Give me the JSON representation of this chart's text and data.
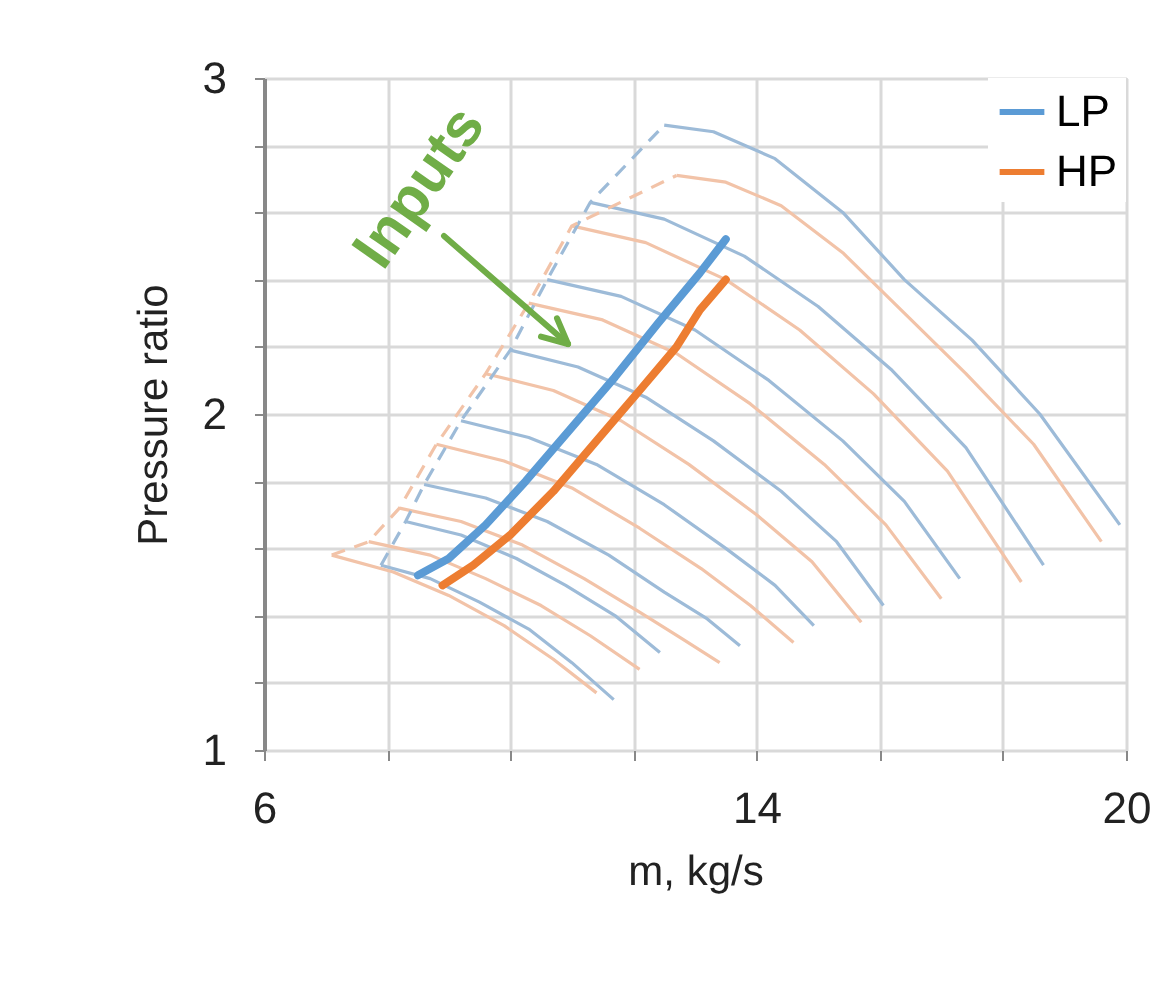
{
  "chart_data": {
    "type": "line",
    "xlabel": "m, kg/s",
    "ylabel": "Pressure ratio",
    "xlim": [
      6,
      20
    ],
    "ylim": [
      1,
      3
    ],
    "xticks": [
      6,
      {
        "value": 8,
        "label": null
      },
      {
        "value": 10,
        "label": null
      },
      {
        "value": 12,
        "label": null
      },
      14,
      {
        "value": 16,
        "label": null
      },
      {
        "value": 18,
        "label": null
      },
      20
    ],
    "yticks": [
      1,
      {
        "value": 1.2,
        "label": null
      },
      {
        "value": 1.4,
        "label": null
      },
      {
        "value": 1.6,
        "label": null
      },
      {
        "value": 1.8,
        "label": null
      },
      2,
      {
        "value": 2.2,
        "label": null
      },
      {
        "value": 2.4,
        "label": null
      },
      {
        "value": 2.6,
        "label": null
      },
      {
        "value": 2.8,
        "label": null
      },
      3
    ],
    "grid": true,
    "legend": "top right",
    "line_style": "solid",
    "marker": "none",
    "annotations": [
      "Inputs"
    ],
    "series": [
      {
        "color": "#9dbbd8",
        "x": [
          12.5,
          13.3,
          14.3,
          15.4,
          16.4,
          17.5,
          18.6,
          19.9
        ],
        "values": [
          2.86,
          2.84,
          2.76,
          2.6,
          2.4,
          2.22,
          2.0,
          1.67
        ]
      },
      {
        "color": "#9dbbd8",
        "x": [
          11.3,
          12.5,
          13.8,
          15.0,
          16.2,
          17.4,
          18.66
        ],
        "values": [
          2.63,
          2.58,
          2.47,
          2.32,
          2.13,
          1.9,
          1.55
        ]
      },
      {
        "color": "#9dbbd8",
        "x": [
          10.6,
          11.8,
          13.0,
          14.2,
          15.4,
          16.4,
          17.3
        ],
        "values": [
          2.4,
          2.35,
          2.25,
          2.1,
          1.92,
          1.74,
          1.51
        ]
      },
      {
        "color": "#9dbbd8",
        "x": [
          10.0,
          11.1,
          12.2,
          13.3,
          14.4,
          15.3,
          16.06
        ],
        "values": [
          2.19,
          2.14,
          2.05,
          1.92,
          1.77,
          1.62,
          1.43
        ]
      },
      {
        "color": "#9dbbd8",
        "x": [
          9.2,
          10.3,
          11.4,
          12.5,
          13.5,
          14.3,
          14.93
        ],
        "values": [
          1.98,
          1.93,
          1.85,
          1.73,
          1.6,
          1.49,
          1.37
        ]
      },
      {
        "color": "#9dbbd8",
        "x": [
          8.6,
          9.6,
          10.6,
          11.6,
          12.5,
          13.2,
          13.73
        ],
        "values": [
          1.79,
          1.75,
          1.68,
          1.58,
          1.47,
          1.39,
          1.31
        ]
      },
      {
        "color": "#9dbbd8",
        "x": [
          8.3,
          9.2,
          10.1,
          10.9,
          11.7,
          12.43
        ],
        "values": [
          1.68,
          1.64,
          1.57,
          1.49,
          1.4,
          1.29
        ]
      },
      {
        "color": "#9dbbd8",
        "x": [
          7.9,
          8.7,
          9.5,
          10.3,
          11.0,
          11.68
        ],
        "values": [
          1.55,
          1.51,
          1.44,
          1.36,
          1.26,
          1.15
        ]
      },
      {
        "color": "#9dbbd8",
        "line_style": "dashed",
        "x": [
          7.9,
          8.3,
          8.6,
          9.2,
          10.0,
          10.6,
          11.3,
          12.5
        ],
        "values": [
          1.55,
          1.68,
          1.79,
          1.98,
          2.19,
          2.4,
          2.63,
          2.86
        ]
      },
      {
        "color": "#f2c3a8",
        "x": [
          12.7,
          13.5,
          14.4,
          15.4,
          16.4,
          17.4,
          18.5,
          19.6
        ],
        "values": [
          2.71,
          2.69,
          2.62,
          2.48,
          2.3,
          2.12,
          1.91,
          1.62
        ]
      },
      {
        "color": "#f2c3a8",
        "x": [
          11.0,
          12.2,
          13.5,
          14.7,
          15.9,
          17.1,
          18.3
        ],
        "values": [
          2.56,
          2.51,
          2.4,
          2.25,
          2.06,
          1.83,
          1.5
        ]
      },
      {
        "color": "#f2c3a8",
        "x": [
          10.3,
          11.5,
          12.7,
          13.9,
          15.1,
          16.1,
          17.0
        ],
        "values": [
          2.33,
          2.28,
          2.18,
          2.03,
          1.85,
          1.67,
          1.45
        ]
      },
      {
        "color": "#f2c3a8",
        "x": [
          9.6,
          10.7,
          11.8,
          12.9,
          14.0,
          14.9,
          15.7
        ],
        "values": [
          2.12,
          2.07,
          1.98,
          1.85,
          1.7,
          1.56,
          1.38
        ]
      },
      {
        "color": "#f2c3a8",
        "x": [
          8.8,
          9.9,
          11.0,
          12.1,
          13.1,
          13.9,
          14.6
        ],
        "values": [
          1.91,
          1.86,
          1.78,
          1.66,
          1.54,
          1.43,
          1.32
        ]
      },
      {
        "color": "#f2c3a8",
        "x": [
          8.2,
          9.2,
          10.2,
          11.2,
          12.1,
          12.8,
          13.4
        ],
        "values": [
          1.72,
          1.68,
          1.61,
          1.51,
          1.41,
          1.33,
          1.26
        ]
      },
      {
        "color": "#f2c3a8",
        "x": [
          7.7,
          8.7,
          9.6,
          10.5,
          11.3,
          12.1
        ],
        "values": [
          1.62,
          1.58,
          1.51,
          1.43,
          1.34,
          1.24
        ]
      },
      {
        "color": "#f2c3a8",
        "x": [
          7.1,
          8.1,
          9.0,
          9.9,
          10.7,
          11.4
        ],
        "values": [
          1.58,
          1.53,
          1.46,
          1.37,
          1.27,
          1.17
        ]
      },
      {
        "color": "#f2c3a8",
        "line_style": "dashed",
        "x": [
          7.1,
          7.7,
          8.2,
          8.8,
          9.6,
          10.3,
          11.0,
          12.7
        ],
        "values": [
          1.58,
          1.62,
          1.72,
          1.91,
          2.12,
          2.33,
          2.56,
          2.71
        ]
      },
      {
        "name": "LP",
        "color": "#5b9bd5",
        "x": [
          8.5,
          9.0,
          9.6,
          10.25,
          11.0,
          11.7,
          12.4,
          13.08,
          13.5
        ],
        "values": [
          1.52,
          1.57,
          1.67,
          1.8,
          1.96,
          2.11,
          2.27,
          2.42,
          2.52
        ]
      },
      {
        "name": "HP",
        "color": "#ed7d31",
        "x": [
          8.9,
          9.4,
          10.0,
          10.7,
          11.4,
          12.1,
          12.7,
          13.08,
          13.5
        ],
        "values": [
          1.49,
          1.55,
          1.64,
          1.77,
          1.92,
          2.07,
          2.2,
          2.31,
          2.4
        ]
      }
    ]
  }
}
